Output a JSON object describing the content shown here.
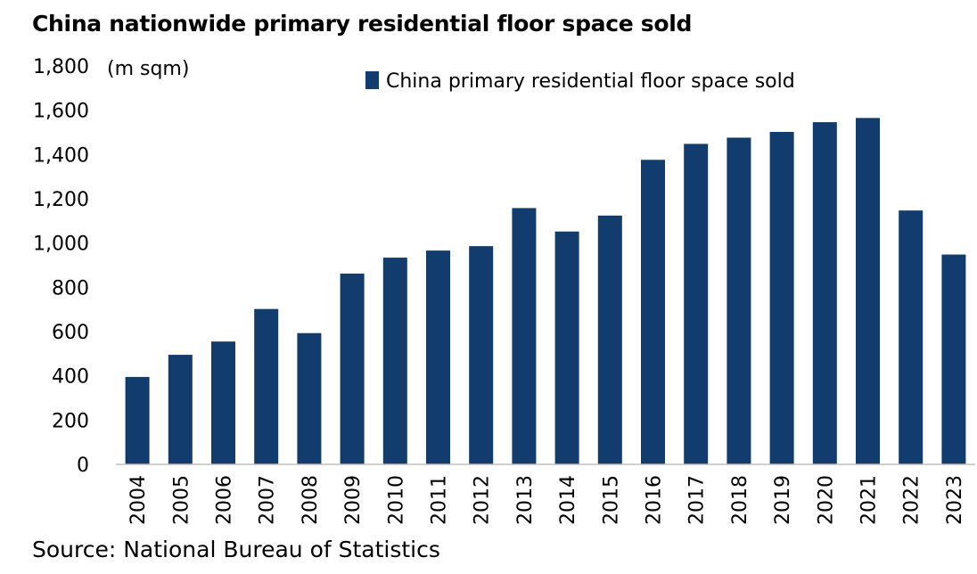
{
  "chart_data": {
    "type": "bar",
    "title": "China nationwide primary residential floor space sold",
    "unit_label": "(m sqm)",
    "source": "Source: National Bureau of Statistics",
    "categories": [
      "2004",
      "2005",
      "2006",
      "2007",
      "2008",
      "2009",
      "2010",
      "2011",
      "2012",
      "2013",
      "2014",
      "2015",
      "2016",
      "2017",
      "2018",
      "2019",
      "2020",
      "2021",
      "2022",
      "2023"
    ],
    "series": [
      {
        "name": "China primary residential floor space sold",
        "values": [
          395,
          495,
          555,
          702,
          593,
          862,
          934,
          966,
          986,
          1158,
          1052,
          1124,
          1376,
          1448,
          1476,
          1502,
          1546,
          1565,
          1147,
          948
        ]
      }
    ],
    "ylim": [
      0,
      1800
    ],
    "yticks": [
      0,
      200,
      400,
      600,
      800,
      1000,
      1200,
      1400,
      1600,
      1800
    ],
    "ytick_labels": [
      "0",
      "200",
      "400",
      "600",
      "800",
      "1,000",
      "1,200",
      "1,400",
      "1,600",
      "1,800"
    ],
    "grid": false,
    "legend_position": "top-center",
    "bar_color": "#123c6e"
  }
}
